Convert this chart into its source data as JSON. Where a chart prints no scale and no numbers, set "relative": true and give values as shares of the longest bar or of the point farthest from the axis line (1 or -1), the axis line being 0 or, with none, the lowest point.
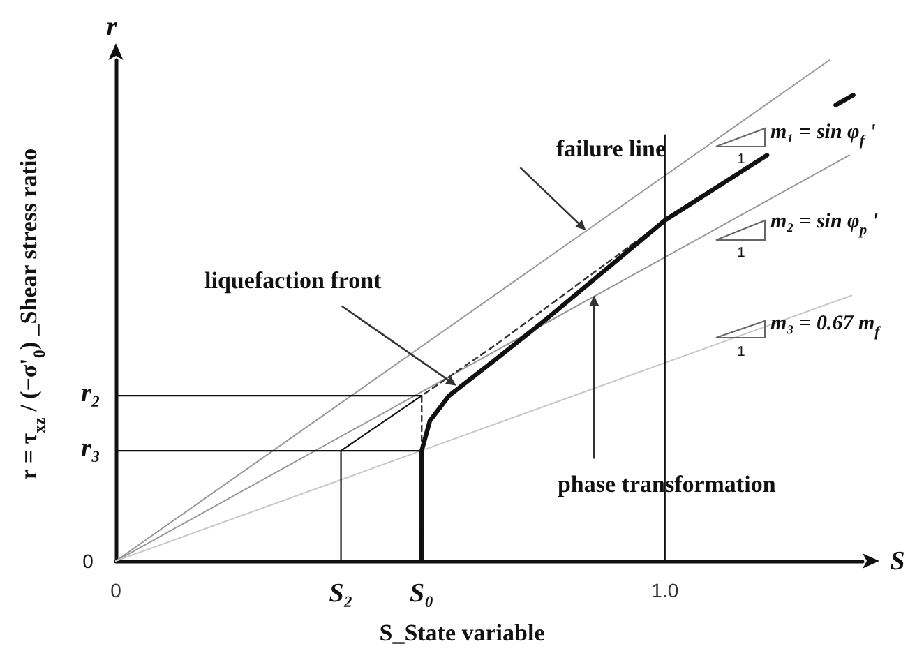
{
  "chart_data": {
    "type": "line",
    "relative": true,
    "xlabel": "S_State variable",
    "ylabel": "r = τ$_{xz}$ / (−σ'$_{0}$) _Shear stress ratio",
    "xlim": [
      0,
      1.36
    ],
    "xticks": [
      0,
      {
        "value": 0.41,
        "label": "S₂"
      },
      {
        "value": 0.557,
        "label": "S₀"
      },
      {
        "value": 1,
        "label": "1.0"
      }
    ],
    "grid": false,
    "marker": "none",
    "series": [
      {
        "color": "#999999",
        "x": [
          0,
          1.3
        ],
        "values": [
          0,
          1
        ]
      },
      {
        "color": "#999999",
        "x": [
          0,
          1.336
        ],
        "values": [
          0,
          0.81
        ]
      },
      {
        "color": "#c8c8c8",
        "x": [
          0,
          1.34
        ],
        "values": [
          0,
          0.53
        ]
      },
      {
        "color": "#111111",
        "x": [
          0.557,
          0.557,
          0.572,
          0.607,
          0.689,
          0.781,
          1.0,
          1.186,
          null,
          1.311,
          1.343
        ],
        "values": [
          0,
          0.22,
          0.28,
          0.33,
          0.4,
          0.48,
          0.68,
          0.81,
          null,
          0.91,
          0.93
        ]
      },
      {
        "color": "#333333",
        "line_style": "dashed",
        "x": [
          0.557,
          0.557,
          0.69,
          1.0
        ],
        "values": [
          0.22,
          0.33,
          0.43,
          0.68
        ]
      },
      {
        "color": "#111111",
        "x": [
          0,
          0.557
        ],
        "values": [
          0.33,
          0.33
        ]
      },
      {
        "color": "#111111",
        "x": [
          0,
          0.557
        ],
        "values": [
          0.22,
          0.22
        ]
      },
      {
        "color": "#111111",
        "x": [
          0.41,
          0.41,
          0.557
        ],
        "values": [
          0,
          0.22,
          0.33
        ]
      },
      {
        "color": "#111111",
        "x": [
          1,
          1
        ],
        "values": [
          0,
          0.85
        ]
      }
    ],
    "annotations": [
      {
        "text": "failure line",
        "x": 0.856,
        "y": 0.66
      },
      {
        "text": "liquefaction front",
        "x": 0.62,
        "y": 0.35
      },
      {
        "text": "phase transformation",
        "x": 0.871,
        "y": 0.53
      },
      "m₁ = sin φ$_{f}$ '",
      "1",
      "m₂ = sin φ$_{p}$ '",
      "1",
      "m₃ = 0.67 m$_{f}$",
      "1",
      "0",
      {
        "text": "r₂",
        "x": 0,
        "y": 0.33
      },
      {
        "text": "r₃",
        "x": 0,
        "y": 0.22
      },
      "S",
      "r"
    ]
  }
}
